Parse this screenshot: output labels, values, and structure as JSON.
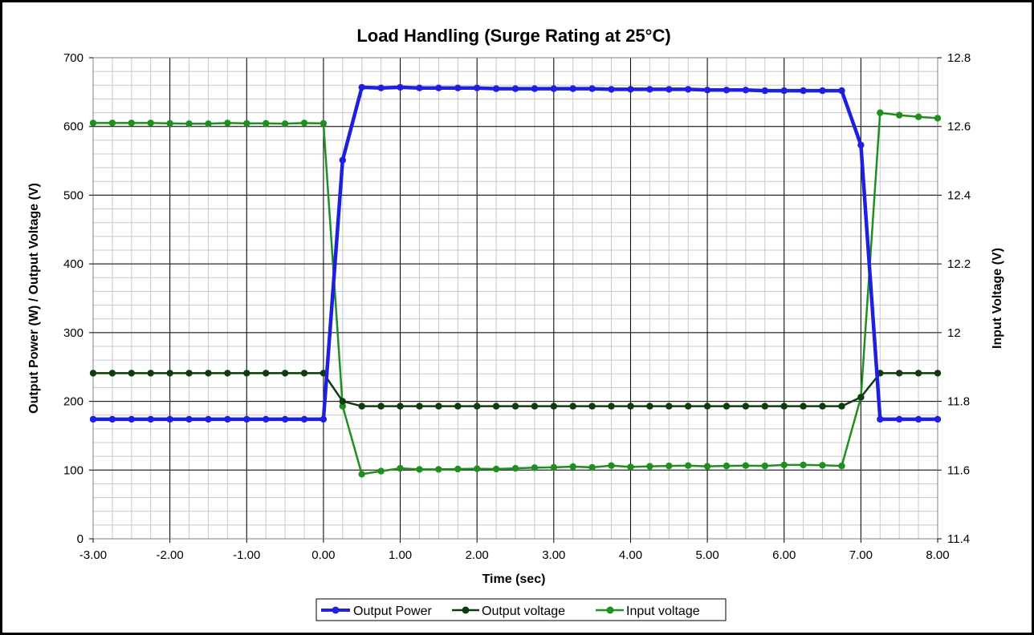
{
  "chart_data": {
    "type": "line",
    "title": "Load Handling (Surge Rating at 25°C)",
    "xlabel": "Time (sec)",
    "ylabel_left": "Output Power (W) / Output Voltage (V)",
    "ylabel_right": "Input Voltage (V)",
    "xlim": [
      -3,
      8
    ],
    "ylim_left": [
      0,
      700
    ],
    "ylim_right": [
      11.4,
      12.8
    ],
    "x_ticks": [
      "-3.00",
      "-2.00",
      "-1.00",
      "0.00",
      "1.00",
      "2.00",
      "3.00",
      "4.00",
      "5.00",
      "6.00",
      "7.00",
      "8.00"
    ],
    "y_left_ticks": [
      "0",
      "100",
      "200",
      "300",
      "400",
      "500",
      "600",
      "700"
    ],
    "y_right_ticks": [
      "11.4",
      "11.6",
      "11.8",
      "12",
      "12.2",
      "12.4",
      "12.6",
      "12.8"
    ],
    "grid": true,
    "legend_position": "bottom",
    "series": [
      {
        "name": "Output Power",
        "axis": "left",
        "color": "#1f1fe0",
        "x": [
          -3,
          -2.75,
          -2.5,
          -2.25,
          -2,
          -1.75,
          -1.5,
          -1.25,
          -1,
          -0.75,
          -0.5,
          -0.25,
          0,
          0.25,
          0.5,
          0.75,
          1,
          1.25,
          1.5,
          1.75,
          2,
          2.25,
          2.5,
          2.75,
          3,
          3.25,
          3.5,
          3.75,
          4,
          4.25,
          4.5,
          4.75,
          5,
          5.25,
          5.5,
          5.75,
          6,
          6.25,
          6.5,
          6.75,
          7,
          7.25,
          7.5,
          7.75,
          8
        ],
        "values": [
          174,
          174,
          174,
          174,
          174,
          174,
          174,
          174,
          174,
          174,
          174,
          174,
          174,
          551,
          657,
          656,
          657,
          656,
          656,
          656,
          656,
          655,
          655,
          655,
          655,
          655,
          655,
          654,
          654,
          654,
          654,
          654,
          653,
          653,
          653,
          652,
          652,
          652,
          652,
          652,
          573,
          174,
          174,
          174,
          174
        ]
      },
      {
        "name": "Output voltage",
        "axis": "left",
        "color": "#0d3d0d",
        "x": [
          -3,
          -2.75,
          -2.5,
          -2.25,
          -2,
          -1.75,
          -1.5,
          -1.25,
          -1,
          -0.75,
          -0.5,
          -0.25,
          0,
          0.25,
          0.5,
          0.75,
          1,
          1.25,
          1.5,
          1.75,
          2,
          2.25,
          2.5,
          2.75,
          3,
          3.25,
          3.5,
          3.75,
          4,
          4.25,
          4.5,
          4.75,
          5,
          5.25,
          5.5,
          5.75,
          6,
          6.25,
          6.5,
          6.75,
          7,
          7.25,
          7.5,
          7.75,
          8
        ],
        "values": [
          241,
          241,
          241,
          241,
          241,
          241,
          241,
          241,
          241,
          241,
          241,
          241,
          241,
          200,
          193,
          193,
          193,
          193,
          193,
          193,
          193,
          193,
          193,
          193,
          193,
          193,
          193,
          193,
          193,
          193,
          193,
          193,
          193,
          193,
          193,
          193,
          193,
          193,
          193,
          193,
          206,
          241,
          241,
          241,
          241
        ]
      },
      {
        "name": "Input voltage",
        "axis": "right",
        "color": "#1f8f1f",
        "x": [
          -3,
          -2.75,
          -2.5,
          -2.25,
          -2,
          -1.75,
          -1.5,
          -1.25,
          -1,
          -0.75,
          -0.5,
          -0.25,
          0,
          0.25,
          0.5,
          0.75,
          1,
          1.25,
          1.5,
          1.75,
          2,
          2.25,
          2.5,
          2.75,
          3,
          3.25,
          3.5,
          3.75,
          4,
          4.25,
          4.5,
          4.75,
          5,
          5.25,
          5.5,
          5.75,
          6,
          6.25,
          6.5,
          6.75,
          7,
          7.25,
          7.5,
          7.75,
          8
        ],
        "values": [
          12.61,
          12.61,
          12.61,
          12.61,
          12.609,
          12.608,
          12.608,
          12.61,
          12.609,
          12.609,
          12.608,
          12.61,
          12.609,
          11.786,
          11.588,
          11.597,
          11.605,
          11.602,
          11.602,
          11.603,
          11.604,
          11.603,
          11.605,
          11.607,
          11.608,
          11.61,
          11.608,
          11.613,
          11.609,
          11.611,
          11.612,
          11.613,
          11.611,
          11.612,
          11.613,
          11.612,
          11.615,
          11.615,
          11.614,
          11.612,
          11.812,
          12.64,
          12.633,
          12.628,
          12.624
        ]
      }
    ]
  }
}
